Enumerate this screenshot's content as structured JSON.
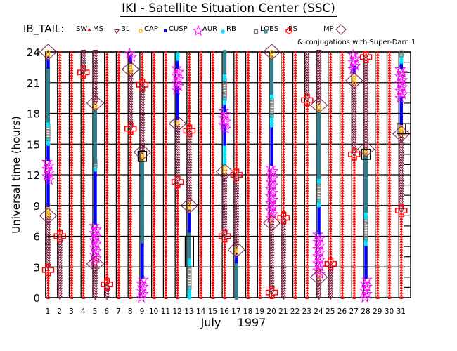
{
  "header": {
    "title": "IKI - Satellite Situation Center (SSC)",
    "satellite": "IB_TAIL:",
    "conjugations": "& conjugations with Super-Darn 1"
  },
  "legend": [
    {
      "key": "SW",
      "label": "SW",
      "color": "#ff0000"
    },
    {
      "key": "MS",
      "label": "MS",
      "color": "#ff0000"
    },
    {
      "key": "BL",
      "label": "BL",
      "color": "#7f1f3f"
    },
    {
      "key": "CAP",
      "label": "CAP",
      "color": "#ffaa00"
    },
    {
      "key": "CUSP",
      "label": "CUSP",
      "color": "#0000ff"
    },
    {
      "key": "AUR",
      "label": "AUR",
      "color": "#ff00ff"
    },
    {
      "key": "RB",
      "label": "RB",
      "color": "#00e5ff"
    },
    {
      "key": "LOBS",
      "label": "LOBS",
      "color": "#808080"
    },
    {
      "key": "BS",
      "label": "BS",
      "color": "#2f7f8f"
    },
    {
      "key": "MP",
      "label": "MP",
      "color": "#ff0000"
    }
  ],
  "chart_data": {
    "type": "scatter",
    "title": "IKI - Satellite Situation Center (SSC)",
    "xlabel": "July",
    "xlabel2": "1997",
    "ylabel": "Universal time (hours)",
    "xlim": [
      1,
      31
    ],
    "ylim": [
      0,
      24
    ],
    "yticks": [
      "0",
      "3",
      "6",
      "9",
      "12",
      "15",
      "18",
      "21",
      "24"
    ],
    "xticks": [
      "1",
      "2",
      "3",
      "4",
      "5",
      "6",
      "7",
      "8",
      "9",
      "10",
      "11",
      "12",
      "13",
      "14",
      "15",
      "16",
      "17",
      "18",
      "19",
      "20",
      "21",
      "22",
      "23",
      "24",
      "25",
      "26",
      "27",
      "28",
      "29",
      "30",
      "31"
    ],
    "grid": true,
    "days": [
      {
        "day": 1,
        "segments": [
          [
            "MS",
            0,
            3
          ],
          [
            "BL",
            3,
            8
          ],
          [
            "CAP",
            8,
            9
          ],
          [
            "CUSP",
            9,
            12
          ],
          [
            "AUR",
            11.5,
            13.5
          ],
          [
            "CUSP",
            13.5,
            15
          ],
          [
            "RB",
            15,
            15.5
          ],
          [
            "LOBS",
            15.5,
            16.8
          ],
          [
            "RB",
            16.8,
            17.3
          ],
          [
            "BS",
            17.3,
            22.5
          ],
          [
            "CUSP",
            22.5,
            23.5
          ],
          [
            "CAP",
            23.5,
            24
          ]
        ],
        "mp": [
          2.7
        ],
        "diamond": [
          8,
          24
        ],
        "box": []
      },
      {
        "day": 2,
        "segments": [
          [
            "BL",
            0,
            6
          ],
          [
            "MS",
            6,
            24
          ]
        ],
        "mp": [
          6
        ],
        "diamond": [],
        "box": []
      },
      {
        "day": 3,
        "segments": [
          [
            "SW",
            0,
            24
          ]
        ],
        "mp": [],
        "diamond": [],
        "box": []
      },
      {
        "day": 4,
        "segments": [
          [
            "MS",
            0,
            22
          ],
          [
            "BL",
            22,
            24
          ]
        ],
        "mp": [
          22
        ],
        "diamond": [],
        "box": []
      },
      {
        "day": 5,
        "segments": [
          [
            "BL",
            0,
            3.3
          ],
          [
            "CAP",
            3.3,
            4
          ],
          [
            "AUR",
            3.5,
            7.3
          ],
          [
            "CUSP",
            7.3,
            12.5
          ],
          [
            "RB",
            12.5,
            12.8
          ],
          [
            "LOBS",
            12.8,
            13.3
          ],
          [
            "BS",
            13.3,
            18.5
          ],
          [
            "CAP",
            18.5,
            19
          ],
          [
            "BL",
            19,
            24
          ]
        ],
        "mp": [],
        "diamond": [
          3.3,
          19
        ],
        "box": []
      },
      {
        "day": 6,
        "segments": [
          [
            "BL",
            0,
            1.3
          ],
          [
            "MS",
            1.3,
            24
          ]
        ],
        "mp": [
          1.3
        ],
        "diamond": [],
        "box": []
      },
      {
        "day": 7,
        "segments": [
          [
            "SW",
            0,
            24
          ]
        ],
        "mp": [],
        "diamond": [],
        "box": []
      },
      {
        "day": 8,
        "segments": [
          [
            "MS",
            0,
            16.5
          ],
          [
            "BL",
            16.5,
            22
          ],
          [
            "CAP",
            22,
            23
          ],
          [
            "CUSP",
            23,
            23.5
          ],
          [
            "AUR",
            23.5,
            24
          ]
        ],
        "mp": [
          16.5
        ],
        "diamond": [
          22.3
        ],
        "box": []
      },
      {
        "day": 9,
        "segments": [
          [
            "AUR",
            0,
            2
          ],
          [
            "CUSP",
            2,
            5.5
          ],
          [
            "BS",
            5.5,
            13.5
          ],
          [
            "CAP",
            13.5,
            14.2
          ],
          [
            "BL",
            14.2,
            20.8
          ],
          [
            "MS",
            20.8,
            24
          ]
        ],
        "mp": [
          20.8
        ],
        "diamond": [
          14.2
        ],
        "box": [
          13.8
        ]
      },
      {
        "day": 10,
        "segments": [
          [
            "SW",
            0,
            24
          ]
        ],
        "mp": [],
        "diamond": [],
        "box": []
      },
      {
        "day": 11,
        "segments": [
          [
            "SW",
            0,
            24
          ]
        ],
        "mp": [],
        "diamond": [],
        "box": []
      },
      {
        "day": 12,
        "segments": [
          [
            "MS",
            0,
            11.3
          ],
          [
            "BL",
            11.3,
            17
          ],
          [
            "CAP",
            17,
            17.5
          ],
          [
            "CUSP",
            17.5,
            20.5
          ],
          [
            "AUR",
            20.3,
            22.5
          ],
          [
            "CUSP",
            22.5,
            23.3
          ],
          [
            "RB",
            23.3,
            24
          ]
        ],
        "mp": [
          11.3
        ],
        "diamond": [
          17
        ],
        "box": []
      },
      {
        "day": 13,
        "segments": [
          [
            "RB",
            0,
            1
          ],
          [
            "LOBS",
            1,
            3.2
          ],
          [
            "RB",
            3.2,
            4
          ],
          [
            "BS",
            4,
            6.5
          ],
          [
            "CUSP",
            6.5,
            8.5
          ],
          [
            "CAP",
            8.5,
            9.3
          ],
          [
            "BL",
            9.3,
            16.3
          ],
          [
            "MS",
            16.3,
            24
          ]
        ],
        "mp": [
          16.3
        ],
        "diamond": [
          9
        ],
        "box": [
          3,
          6
        ]
      },
      {
        "day": 14,
        "segments": [
          [
            "SW",
            0,
            24
          ]
        ],
        "mp": [],
        "diamond": [],
        "box": []
      },
      {
        "day": 15,
        "segments": [
          [
            "SW",
            0,
            24
          ]
        ],
        "mp": [],
        "diamond": [],
        "box": []
      },
      {
        "day": 16,
        "segments": [
          [
            "MS",
            0,
            6
          ],
          [
            "BL",
            6,
            12.3
          ],
          [
            "CAP",
            12.3,
            13
          ],
          [
            "RB",
            13,
            15
          ],
          [
            "CUSP",
            15,
            16.8
          ],
          [
            "AUR",
            16.5,
            18.3
          ],
          [
            "CUSP",
            18.3,
            19
          ],
          [
            "RB",
            19,
            19.5
          ],
          [
            "LOBS",
            19.5,
            21.3
          ],
          [
            "RB",
            21.3,
            22
          ],
          [
            "BS",
            22,
            24
          ]
        ],
        "mp": [
          6
        ],
        "diamond": [
          12.3
        ],
        "box": []
      },
      {
        "day": 17,
        "segments": [
          [
            "BS",
            0,
            3.5
          ],
          [
            "CUSP",
            3.5,
            4.3
          ],
          [
            "CAP",
            4.3,
            5
          ],
          [
            "BL",
            5,
            12
          ],
          [
            "MS",
            12,
            24
          ]
        ],
        "mp": [
          12
        ],
        "diamond": [
          4.7
        ],
        "box": []
      },
      {
        "day": 18,
        "segments": [
          [
            "SW",
            0,
            24
          ]
        ],
        "mp": [],
        "diamond": [],
        "box": []
      },
      {
        "day": 19,
        "segments": [
          [
            "SW",
            0,
            24
          ]
        ],
        "mp": [],
        "diamond": [],
        "box": []
      },
      {
        "day": 20,
        "segments": [
          [
            "MS",
            0,
            0.5
          ],
          [
            "BL",
            0.5,
            7.5
          ],
          [
            "CAP",
            7.5,
            8
          ],
          [
            "AUR",
            7.8,
            13
          ],
          [
            "CUSP",
            13,
            16.8
          ],
          [
            "RB",
            16.8,
            17.8
          ],
          [
            "LOBS",
            17.8,
            19.5
          ],
          [
            "RB",
            19.5,
            20
          ],
          [
            "BS",
            20,
            23.5
          ],
          [
            "CAP",
            23.5,
            24
          ]
        ],
        "mp": [
          0.5
        ],
        "diamond": [
          7.3,
          24
        ],
        "box": []
      },
      {
        "day": 21,
        "segments": [
          [
            "BL",
            0,
            7.8
          ],
          [
            "MS",
            7.8,
            24
          ]
        ],
        "mp": [
          7.8
        ],
        "diamond": [],
        "box": []
      },
      {
        "day": 22,
        "segments": [
          [
            "SW",
            0,
            24
          ]
        ],
        "mp": [],
        "diamond": [],
        "box": []
      },
      {
        "day": 23,
        "segments": [
          [
            "MS",
            0,
            19.3
          ],
          [
            "BL",
            19.3,
            24
          ]
        ],
        "mp": [
          19.3
        ],
        "diamond": [],
        "box": []
      },
      {
        "day": 24,
        "segments": [
          [
            "BL",
            0,
            2
          ],
          [
            "CAP",
            2,
            2.8
          ],
          [
            "AUR",
            2.3,
            6.3
          ],
          [
            "CUSP",
            6.3,
            9
          ],
          [
            "RB",
            9,
            9.5
          ],
          [
            "LOBS",
            9.5,
            11.3
          ],
          [
            "RB",
            11.3,
            11.8
          ],
          [
            "BS",
            11.8,
            18.3
          ],
          [
            "CAP",
            18.3,
            19
          ],
          [
            "BL",
            19,
            24
          ]
        ],
        "mp": [],
        "diamond": [
          2,
          18.8
        ],
        "box": []
      },
      {
        "day": 25,
        "segments": [
          [
            "BL",
            0,
            3.3
          ],
          [
            "MS",
            3.3,
            24
          ]
        ],
        "mp": [
          3.3
        ],
        "diamond": [],
        "box": []
      },
      {
        "day": 26,
        "segments": [
          [
            "SW",
            0,
            24
          ]
        ],
        "mp": [],
        "diamond": [],
        "box": []
      },
      {
        "day": 27,
        "segments": [
          [
            "MS",
            0,
            14
          ],
          [
            "BL",
            14,
            21
          ],
          [
            "CAP",
            21,
            22
          ],
          [
            "CUSP",
            22,
            22.5
          ],
          [
            "AUR",
            22.3,
            24
          ]
        ],
        "mp": [
          14
        ],
        "diamond": [
          21.2
        ],
        "box": []
      },
      {
        "day": 28,
        "segments": [
          [
            "AUR",
            0,
            2
          ],
          [
            "CUSP",
            2,
            5.2
          ],
          [
            "RB",
            5.2,
            5.8
          ],
          [
            "LOBS",
            5.8,
            7.8
          ],
          [
            "RB",
            7.8,
            8.5
          ],
          [
            "BS",
            8.5,
            14
          ],
          [
            "CAP",
            14,
            14.5
          ],
          [
            "BL",
            14.5,
            23.5
          ],
          [
            "MS",
            23.5,
            24
          ]
        ],
        "mp": [
          23.5
        ],
        "diamond": [
          14.5
        ],
        "box": [
          14
        ]
      },
      {
        "day": 29,
        "segments": [
          [
            "SW",
            0,
            24
          ]
        ],
        "mp": [],
        "diamond": [],
        "box": []
      },
      {
        "day": 30,
        "segments": [
          [
            "SW",
            0,
            24
          ]
        ],
        "mp": [],
        "diamond": [],
        "box": []
      },
      {
        "day": 31,
        "segments": [
          [
            "MS",
            0,
            8.5
          ],
          [
            "BL",
            8.5,
            16
          ],
          [
            "CAP",
            16,
            17
          ],
          [
            "CUSP",
            17,
            19.5
          ],
          [
            "AUR",
            19.5,
            22.5
          ],
          [
            "CUSP",
            22.5,
            23
          ],
          [
            "RB",
            23,
            23.7
          ],
          [
            "LOBS",
            23.7,
            24
          ]
        ],
        "mp": [
          8.5
        ],
        "diamond": [
          16
        ],
        "box": [
          16.5
        ]
      }
    ]
  }
}
